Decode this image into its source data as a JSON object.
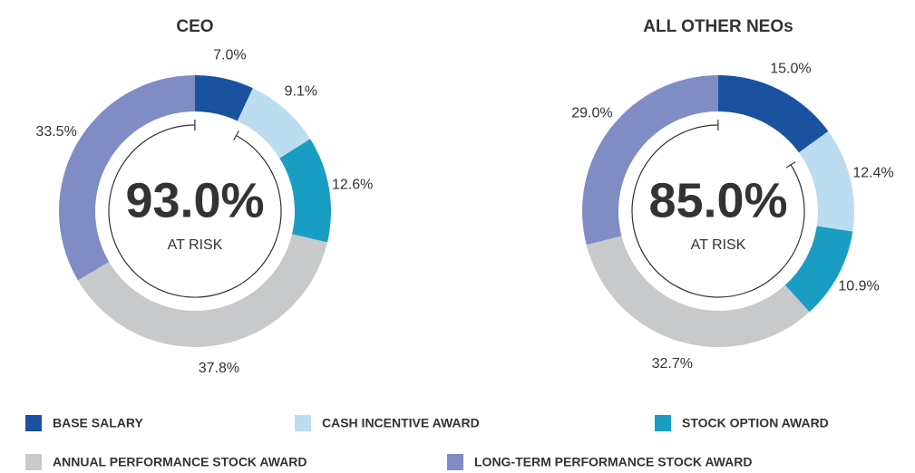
{
  "chart_data": [
    {
      "type": "pie",
      "title": "CEO",
      "values": [
        7.0,
        9.1,
        12.6,
        37.8,
        33.5
      ],
      "value_labels": [
        "7.0%",
        "9.1%",
        "12.6%",
        "37.8%",
        "33.5%"
      ],
      "center_value": "93.0%",
      "center_label": "AT RISK"
    },
    {
      "type": "pie",
      "title": "ALL OTHER NEOs",
      "values": [
        15.0,
        12.4,
        10.9,
        32.7,
        29.0
      ],
      "value_labels": [
        "15.0%",
        "12.4%",
        "10.9%",
        "32.7%",
        "29.0%"
      ],
      "center_value": "85.0%",
      "center_label": "AT RISK"
    }
  ],
  "legend": {
    "labels": [
      "BASE SALARY",
      "CASH INCENTIVE AWARD",
      "STOCK OPTION AWARD",
      "ANNUAL PERFORMANCE STOCK AWARD",
      "LONG-TERM PERFORMANCE STOCK AWARD"
    ],
    "colors": [
      "#1a52a0",
      "#bcdcf0",
      "#1a9dc3",
      "#c8c9cb",
      "#7f8dc4"
    ]
  }
}
